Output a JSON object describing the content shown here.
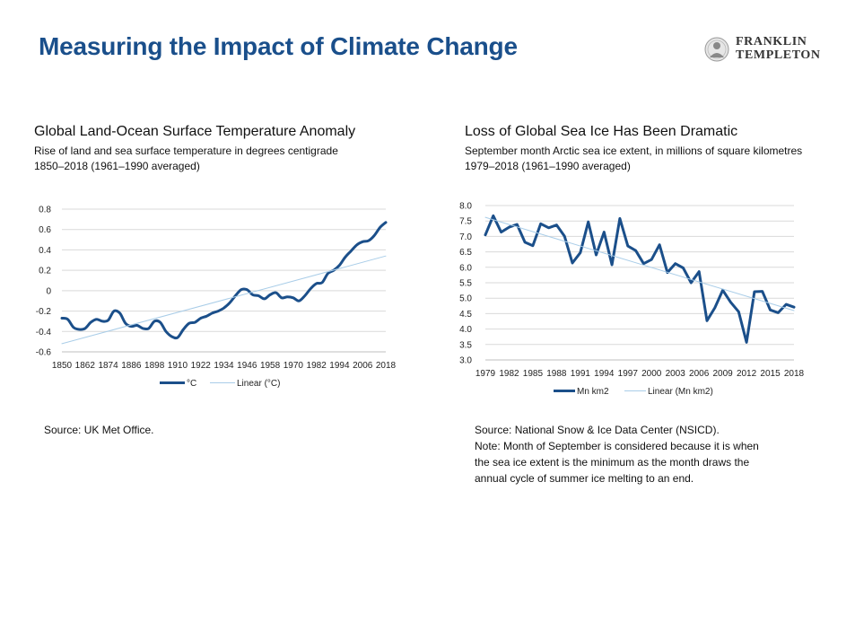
{
  "header": {
    "title": "Measuring the Impact of Climate Change"
  },
  "logo": {
    "line1": "FRANKLIN",
    "line2": "TEMPLETON"
  },
  "left": {
    "title": "Global Land-Ocean Surface Temperature Anomaly",
    "subtitle1": "Rise of land and sea surface temperature in degrees centigrade",
    "subtitle2": "1850–2018 (1961–1990 averaged)",
    "source": "Source: UK Met Office."
  },
  "right": {
    "title": "Loss of Global Sea Ice Has Been Dramatic",
    "subtitle1": "September month Arctic sea ice extent, in millions of square kilometres",
    "subtitle2": "1979–2018 (1961–1990 averaged)",
    "source": "Source: National Snow & Ice Data Center (NSICD).",
    "note": [
      "Note: Month of September is considered because it is when",
      "the sea ice extent is the minimum as the month draws the",
      "annual cycle of summer ice melting to an end."
    ]
  },
  "colors": {
    "title": "#1a4f8b",
    "series": "#1b4f8a",
    "trend": "#a9cde8",
    "grid": "#d9d9d9"
  },
  "chart_data": [
    {
      "type": "line",
      "ylim": [
        -0.6,
        0.8
      ],
      "yticks": [
        "0.8",
        "0.6",
        "0.4",
        "0.2",
        "0",
        "-0.2",
        "-0.4",
        "-0.6"
      ],
      "xticks": [
        "1850",
        "1862",
        "1874",
        "1886",
        "1898",
        "1910",
        "1922",
        "1934",
        "1946",
        "1958",
        "1970",
        "1982",
        "1994",
        "2006",
        "2018"
      ],
      "xlim": [
        1850,
        2018
      ],
      "grid": true,
      "legend_position": "bottom",
      "series": [
        {
          "name": "°C",
          "x": [
            1850,
            1853,
            1856,
            1859,
            1862,
            1865,
            1868,
            1871,
            1874,
            1877,
            1880,
            1883,
            1886,
            1889,
            1892,
            1895,
            1898,
            1901,
            1904,
            1907,
            1910,
            1913,
            1916,
            1919,
            1922,
            1925,
            1928,
            1931,
            1934,
            1937,
            1940,
            1943,
            1946,
            1949,
            1952,
            1955,
            1958,
            1961,
            1964,
            1967,
            1970,
            1973,
            1976,
            1979,
            1982,
            1985,
            1988,
            1991,
            1994,
            1997,
            2000,
            2003,
            2006,
            2009,
            2012,
            2015,
            2018
          ],
          "values": [
            -0.27,
            -0.28,
            -0.36,
            -0.38,
            -0.37,
            -0.31,
            -0.28,
            -0.3,
            -0.29,
            -0.2,
            -0.22,
            -0.32,
            -0.35,
            -0.34,
            -0.37,
            -0.37,
            -0.3,
            -0.31,
            -0.4,
            -0.45,
            -0.46,
            -0.38,
            -0.32,
            -0.31,
            -0.27,
            -0.25,
            -0.22,
            -0.2,
            -0.17,
            -0.12,
            -0.05,
            0.01,
            0.01,
            -0.04,
            -0.05,
            -0.08,
            -0.04,
            -0.02,
            -0.07,
            -0.06,
            -0.07,
            -0.1,
            -0.05,
            0.02,
            0.07,
            0.08,
            0.17,
            0.2,
            0.25,
            0.33,
            0.39,
            0.45,
            0.48,
            0.49,
            0.54,
            0.62,
            0.67
          ]
        },
        {
          "name": "Linear (°C)",
          "type": "trend",
          "x": [
            1850,
            2018
          ],
          "values": [
            -0.52,
            0.34
          ]
        }
      ]
    },
    {
      "type": "line",
      "ylim": [
        3.0,
        8.0
      ],
      "yticks": [
        "8.0",
        "7.5",
        "7.0",
        "6.5",
        "6.0",
        "5.5",
        "5.0",
        "4.5",
        "4.0",
        "3.5",
        "3.0"
      ],
      "xticks": [
        "1979",
        "1982",
        "1985",
        "1988",
        "1991",
        "1994",
        "1997",
        "2000",
        "2003",
        "2006",
        "2009",
        "2012",
        "2015",
        "2018"
      ],
      "xlim": [
        1979,
        2018
      ],
      "grid": true,
      "legend_position": "bottom",
      "series": [
        {
          "name": "Mn km2",
          "x": [
            1979,
            1980,
            1981,
            1982,
            1983,
            1984,
            1985,
            1986,
            1987,
            1988,
            1989,
            1990,
            1991,
            1992,
            1993,
            1994,
            1995,
            1996,
            1997,
            1998,
            1999,
            2000,
            2001,
            2002,
            2003,
            2004,
            2005,
            2006,
            2007,
            2008,
            2009,
            2010,
            2011,
            2012,
            2013,
            2014,
            2015,
            2016,
            2017,
            2018
          ],
          "values": [
            7.05,
            7.67,
            7.14,
            7.3,
            7.39,
            6.81,
            6.7,
            7.41,
            7.28,
            7.37,
            7.01,
            6.14,
            6.47,
            7.47,
            6.4,
            7.14,
            6.08,
            7.58,
            6.69,
            6.54,
            6.12,
            6.25,
            6.73,
            5.83,
            6.12,
            5.98,
            5.5,
            5.86,
            4.27,
            4.69,
            5.26,
            4.87,
            4.56,
            3.57,
            5.21,
            5.22,
            4.62,
            4.53,
            4.8,
            4.71
          ]
        },
        {
          "name": "Linear (Mn km2)",
          "type": "trend",
          "x": [
            1979,
            2018
          ],
          "values": [
            7.62,
            4.6
          ]
        }
      ]
    }
  ]
}
